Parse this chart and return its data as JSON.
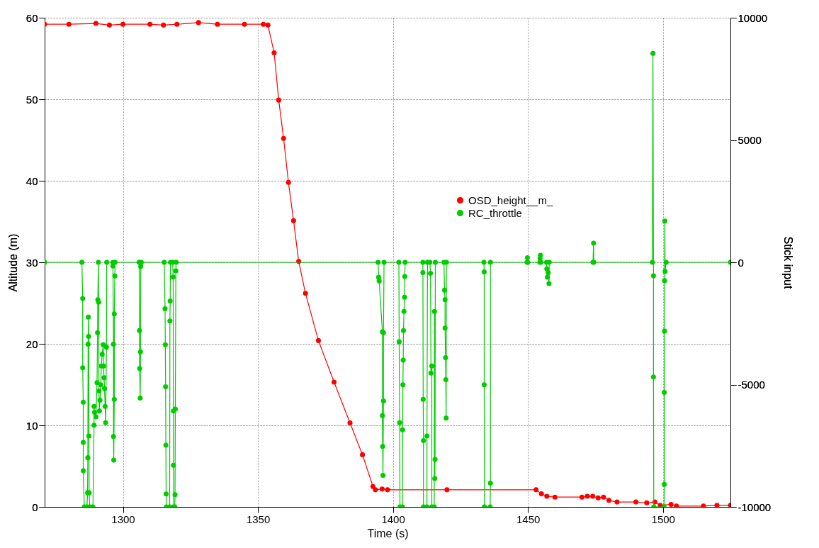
{
  "chart_data": {
    "type": "line",
    "xlabel": "Time (s)",
    "ylabel": "Altitude (m)",
    "y2label": "Stick input",
    "xlim": [
      1271,
      1525
    ],
    "xticks": [
      1300,
      1350,
      1400,
      1450,
      1500
    ],
    "ylim": [
      0,
      60
    ],
    "yticks": [
      0,
      10,
      20,
      30,
      40,
      50,
      60
    ],
    "y2lim": [
      -10000,
      10000
    ],
    "y2ticks": [
      -10000,
      -5000,
      0,
      5000,
      10000
    ],
    "grid": true,
    "legend": "top right",
    "marker": "circle",
    "line_style": "solid",
    "series": [
      {
        "name": "OSD_height__m_",
        "color": "#ff0000",
        "x": [
          1271,
          1280,
          1290,
          1295,
          1300,
          1310,
          1315,
          1320,
          1328,
          1335,
          1345,
          1352,
          1353.7,
          1356,
          1357.7,
          1359.5,
          1361.3,
          1363.2,
          1365.1,
          1367.6,
          1372.4,
          1378.2,
          1384.1,
          1388.7,
          1392.6,
          1393.5,
          1396,
          1398,
          1420,
          1453,
          1455,
          1457,
          1460,
          1470,
          1472,
          1474,
          1476,
          1478,
          1480,
          1483,
          1490,
          1494,
          1497,
          1499,
          1503,
          1505,
          1515,
          1520,
          1525
        ],
        "values": [
          59.2,
          59.2,
          59.3,
          59.1,
          59.2,
          59.2,
          59.1,
          59.2,
          59.4,
          59.2,
          59.2,
          59.2,
          59.1,
          55.7,
          49.9,
          45.2,
          39.8,
          35.1,
          30.1,
          26.2,
          20.4,
          15.3,
          10.3,
          6.4,
          2.5,
          2.1,
          2.2,
          2.1,
          2.1,
          2.1,
          1.6,
          1.3,
          1.2,
          1.2,
          1.3,
          1.3,
          1.1,
          1.2,
          0.8,
          0.6,
          0.6,
          0.5,
          0.6,
          0.2,
          0.3,
          0.1,
          0.1,
          0.2,
          0.2
        ]
      },
      {
        "name": "RC_throttle",
        "color": "#00cc00",
        "axis": "y2",
        "x": [
          1271,
          1284.8,
          1285.1,
          1285.1,
          1285.3,
          1285.3,
          1285.3,
          1285.7,
          1286.7,
          1286.9,
          1287.0,
          1287.1,
          1287.2,
          1287.3,
          1287.4,
          1287.5,
          1287.7,
          1288.9,
          1289.3,
          1289.3,
          1289.5,
          1290.0,
          1290.4,
          1290.6,
          1290.7,
          1290.9,
          1291.0,
          1291.1,
          1291.3,
          1291.5,
          1291.8,
          1292.0,
          1292.3,
          1292.7,
          1292.8,
          1293.0,
          1293.2,
          1293.4,
          1293.6,
          1293.9,
          1294.0,
          1296.3,
          1296.3,
          1296.5,
          1296.5,
          1296.6,
          1296.8,
          1296.8,
          1297.0,
          1297.1,
          1306.0,
          1306.1,
          1306.2,
          1306.4,
          1306.5,
          1306.6,
          1306.8,
          1315.3,
          1315.6,
          1315.7,
          1315.8,
          1315.9,
          1316.0,
          1316.1,
          1317.3,
          1317.4,
          1317.5,
          1317.6,
          1318.4,
          1318.6,
          1318.7,
          1318.7,
          1318.8,
          1319.2,
          1319.3,
          1319.4,
          1319.6,
          1319.7,
          1394.5,
          1394.7,
          1394.9,
          1396.1,
          1396.1,
          1396.2,
          1396.3,
          1396.5,
          1396.5,
          1396.7,
          1402.2,
          1402.3,
          1402.5,
          1402.6,
          1403.5,
          1403.6,
          1403.7,
          1403.8,
          1403.9,
          1404.1,
          1404.3,
          1404.4,
          1404.5,
          1411.1,
          1411.1,
          1411.2,
          1411.3,
          1411.3,
          1412.6,
          1412.6,
          1412.8,
          1413.7,
          1413.9,
          1414.1,
          1414.4,
          1414.4,
          1415.3,
          1415.4,
          1415.5,
          1415.6,
          1415.7,
          1418.9,
          1419.1,
          1419.3,
          1419.3,
          1419.5,
          1419.6,
          1419.7,
          1419.8,
          1433.7,
          1433.8,
          1433.8,
          1433.9,
          1436.0,
          1436.1,
          1436.1,
          1449.7,
          1449.8,
          1449.9,
          1454.4,
          1454.5,
          1454.6,
          1454.8,
          1456.9,
          1457.0,
          1457.2,
          1457.5,
          1457.8,
          1457.9,
          1474.1,
          1474.3,
          1474.4,
          1496.1,
          1496.3,
          1496.5,
          1496.5,
          1496.6,
          1500.4,
          1500.5,
          1500.5,
          1500.6,
          1500.6,
          1500.7,
          1500.8,
          1501.2,
          1525
        ],
        "values": [
          0,
          0,
          -1480,
          -4310,
          -5720,
          -7360,
          -8520,
          -10000,
          -10000,
          -9420,
          -7990,
          -3350,
          -2240,
          -3030,
          -7100,
          -9420,
          -10000,
          -10000,
          -6660,
          -5890,
          -6130,
          -6320,
          -4920,
          -2880,
          -1530,
          0,
          -1630,
          -5260,
          -6080,
          -5640,
          -5010,
          -4240,
          -3760,
          -3370,
          -4240,
          -4720,
          -5160,
          -5890,
          -6560,
          -3470,
          0,
          0,
          -150,
          -3350,
          -7120,
          -8090,
          -5600,
          -2110,
          -560,
          0,
          0,
          -2790,
          -4340,
          -5550,
          -3660,
          -170,
          0,
          0,
          -1900,
          -3370,
          -5090,
          -7480,
          -9470,
          -10000,
          -10000,
          -2400,
          -1580,
          0,
          0,
          -600,
          -6080,
          -8300,
          -10000,
          -10000,
          -9500,
          -6000,
          -350,
          0,
          0,
          -610,
          -760,
          -2840,
          -6270,
          -7530,
          -8710,
          -5670,
          -2880,
          0,
          0,
          -3250,
          -6560,
          -10000,
          -10000,
          -6850,
          -5010,
          -4000,
          -2790,
          -2010,
          -1430,
          -580,
          0,
          0,
          -420,
          -5600,
          -7290,
          -10000,
          -10000,
          -7100,
          0,
          0,
          -450,
          -4530,
          -4240,
          -10000,
          -10000,
          -2010,
          -8840,
          -8060,
          0,
          0,
          -1140,
          -1530,
          -2690,
          -3900,
          -4800,
          -6370,
          0,
          0,
          -390,
          -5010,
          -10000,
          -10000,
          -9030,
          0,
          0,
          190,
          0,
          0,
          160,
          290,
          0,
          0,
          -270,
          -610,
          -420,
          -870,
          0,
          0,
          780,
          0,
          0,
          8540,
          -550,
          -4690,
          -10000,
          -10000,
          -9080,
          -5320,
          -2810,
          -750,
          1690,
          -370,
          0,
          0
        ]
      }
    ]
  }
}
